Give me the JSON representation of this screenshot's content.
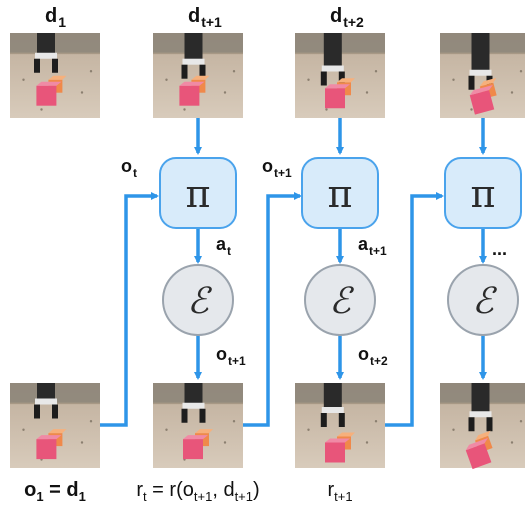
{
  "colors": {
    "arrow": "#2e95e8",
    "policy_fill": "#d8ebfa",
    "policy_stroke": "#4aa3ec",
    "env_fill": "#e5e8ec",
    "env_stroke": "#9aa3ad",
    "cube_pink": "#e8557a",
    "cube_orange": "#f0894a",
    "table": "#cdbfae",
    "wall": "#8a8277"
  },
  "icons": {
    "policy": "pi-symbol",
    "environment": "script-e-symbol"
  },
  "top_frames": [
    {
      "label": "d",
      "sub": "1"
    },
    {
      "label": "d",
      "sub": "t+1"
    },
    {
      "label": "d",
      "sub": "t+2"
    },
    {
      "label": "",
      "sub": ""
    }
  ],
  "policy_glyph": "π",
  "env_glyph": "ℰ",
  "obs_inputs": [
    {
      "label": "o",
      "sub": "t"
    },
    {
      "label": "o",
      "sub": "t+1"
    }
  ],
  "actions": [
    {
      "label": "a",
      "sub": "t"
    },
    {
      "label": "a",
      "sub": "t+1"
    },
    {
      "label": "...",
      "sub": ""
    }
  ],
  "obs_outputs": [
    {
      "label": "o",
      "sub": "t+1"
    },
    {
      "label": "o",
      "sub": "t+2"
    }
  ],
  "bottom_labels": [
    {
      "parts": [
        {
          "t": "o",
          "sub": false
        },
        {
          "t": "1",
          "sub": true
        },
        {
          "t": " = ",
          "sub": false
        },
        {
          "t": "d",
          "sub": false
        },
        {
          "t": "1",
          "sub": true
        }
      ]
    },
    {
      "parts": [
        {
          "t": "r",
          "sub": false
        },
        {
          "t": "t",
          "sub": true
        },
        {
          "t": " = r(",
          "sub": false
        },
        {
          "t": "o",
          "sub": false
        },
        {
          "t": "t+1",
          "sub": true
        },
        {
          "t": ", ",
          "sub": false
        },
        {
          "t": "d",
          "sub": false
        },
        {
          "t": "t+1",
          "sub": true
        },
        {
          "t": ")",
          "sub": false
        }
      ]
    },
    {
      "parts": [
        {
          "t": "r",
          "sub": false
        },
        {
          "t": "t+1",
          "sub": true
        }
      ]
    }
  ]
}
